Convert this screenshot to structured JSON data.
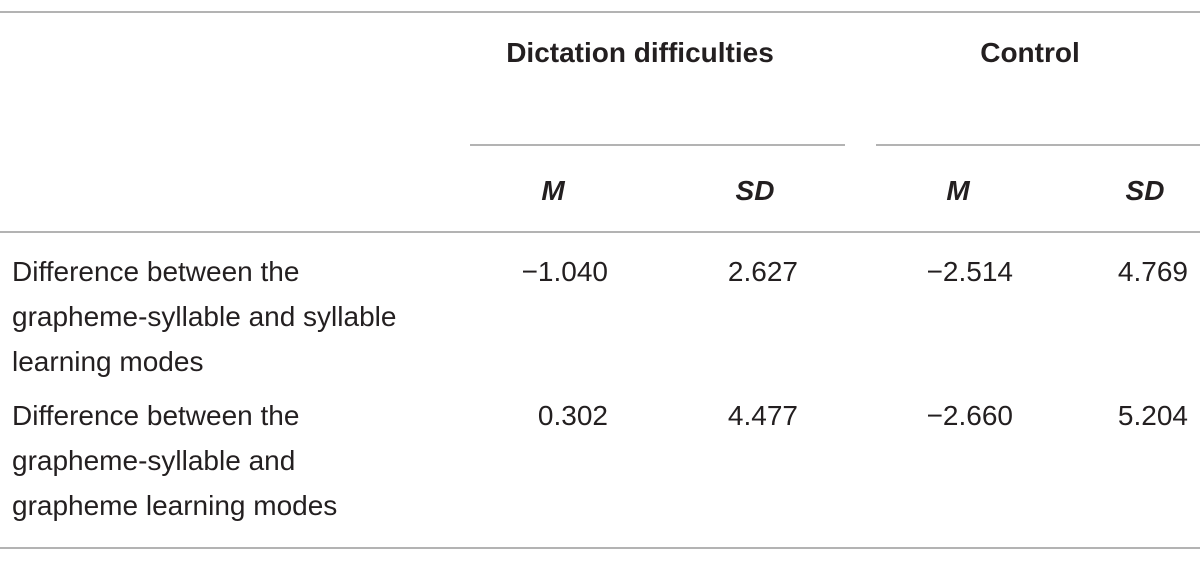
{
  "table": {
    "groups": [
      "Dictation difficulties",
      "Control"
    ],
    "subheaders": [
      "M",
      "SD",
      "M",
      "SD"
    ],
    "rows": [
      [
        "Difference between the grapheme-syllable and syllable learning modes",
        "−1.040",
        "2.627",
        "−2.514",
        "4.769"
      ],
      [
        "Difference between the grapheme-syllable and grapheme learning modes",
        "0.302",
        "4.477",
        "−2.660",
        "5.204"
      ]
    ]
  }
}
